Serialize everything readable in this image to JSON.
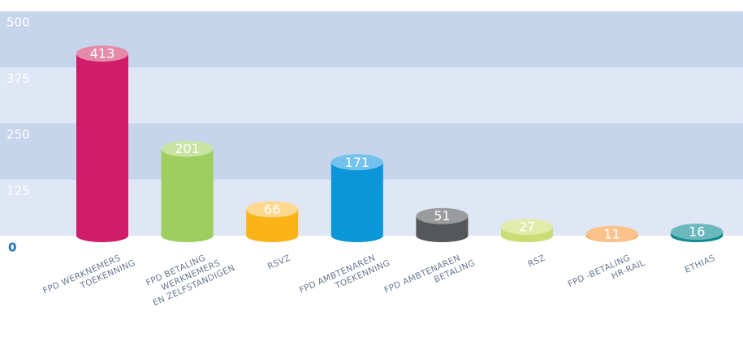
{
  "chart_data": {
    "type": "bar",
    "categories": [
      [
        "FPD WERKNEMERS",
        "TOEKENNING"
      ],
      [
        "FPD BETALING",
        "WERKNEMERS",
        "EN ZELFSTANDIGEN"
      ],
      [
        "RSVZ"
      ],
      [
        "FPD AMBTENAREN",
        "TOEKENNING"
      ],
      [
        "FPD AMBTENAREN",
        "BETALING"
      ],
      [
        "RSZ"
      ],
      [
        "FPD -BETALING",
        "HR-RAIL"
      ],
      [
        "ETHIAS"
      ]
    ],
    "values": [
      413,
      201,
      66,
      171,
      51,
      27,
      11,
      16
    ],
    "colors": [
      "#d11c6a",
      "#9dce5f",
      "#fbb417",
      "#0a96d8",
      "#555759",
      "#c9dd74",
      "#f7941e",
      "#108a8f"
    ],
    "top_colors": [
      "#e68aa9",
      "#c9e3a2",
      "#fdd88e",
      "#72c2ed",
      "#9a9b9d",
      "#e1ecab",
      "#fbc38b",
      "#6cb9bd"
    ],
    "ylim": [
      0,
      500
    ],
    "yticks": [
      0,
      125,
      250,
      375,
      500
    ],
    "band_colors": [
      "#dfe6f4",
      "#c6d4ec"
    ],
    "grid": true
  }
}
